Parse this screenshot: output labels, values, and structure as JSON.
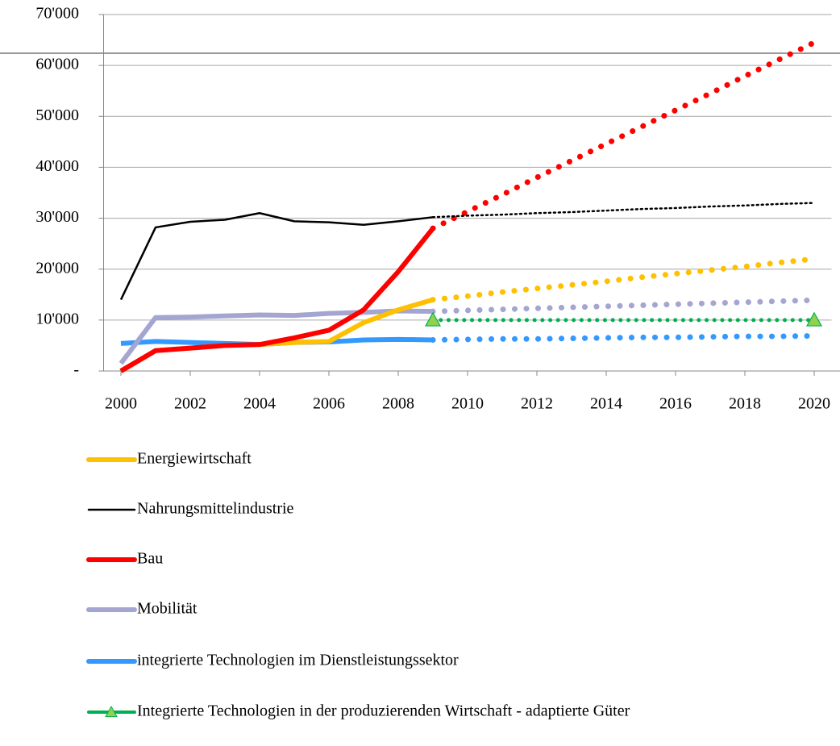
{
  "chart_data": {
    "type": "line",
    "x": [
      2000,
      2001,
      2002,
      2003,
      2004,
      2005,
      2006,
      2007,
      2008,
      2009,
      2010,
      2011,
      2012,
      2013,
      2014,
      2015,
      2016,
      2017,
      2018,
      2019,
      2020
    ],
    "xlim": [
      1999.5,
      2020.5
    ],
    "xticks": [
      2000,
      2002,
      2004,
      2006,
      2008,
      2010,
      2012,
      2014,
      2016,
      2018,
      2020
    ],
    "ylim": [
      0,
      70000
    ],
    "yticks": [
      {
        "value": 0,
        "label": "-"
      },
      {
        "value": 10000,
        "label": "10'000"
      },
      {
        "value": 20000,
        "label": "20'000"
      },
      {
        "value": 30000,
        "label": "30'000"
      },
      {
        "value": 40000,
        "label": "40'000"
      },
      {
        "value": 50000,
        "label": "50'000"
      },
      {
        "value": 60000,
        "label": "60'000"
      },
      {
        "value": 70000,
        "label": "70'000"
      }
    ],
    "grid": true,
    "legend": "bottom",
    "series": [
      {
        "name": "Energiewirtschaft",
        "color": "#ffc000",
        "line_width": 6,
        "values": [
          0,
          4000,
          4500,
          5000,
          5200,
          5600,
          5800,
          9500,
          12000,
          14000,
          null,
          null,
          null,
          null,
          null,
          null,
          null,
          null,
          null,
          null,
          null
        ],
        "forecast": [
          null,
          null,
          null,
          null,
          null,
          null,
          null,
          null,
          null,
          14000,
          14700,
          15500,
          16200,
          16900,
          17600,
          18400,
          19100,
          19800,
          20500,
          21300,
          22000
        ]
      },
      {
        "name": "Nahrungsmittelindustrie",
        "color": "#000000",
        "line_width": 2.5,
        "values": [
          14000,
          28200,
          29300,
          29700,
          31000,
          29400,
          29200,
          28700,
          29400,
          30200,
          null,
          null,
          null,
          null,
          null,
          null,
          null,
          null,
          null,
          null,
          null
        ],
        "forecast": [
          null,
          null,
          null,
          null,
          null,
          null,
          null,
          null,
          null,
          30200,
          30500,
          30700,
          31000,
          31200,
          31500,
          31800,
          32000,
          32300,
          32500,
          32800,
          33000
        ]
      },
      {
        "name": "Bau",
        "color": "#ff0000",
        "line_width": 6,
        "values": [
          0,
          4000,
          4500,
          5000,
          5200,
          6500,
          8000,
          12000,
          19500,
          28000,
          null,
          null,
          null,
          null,
          null,
          null,
          null,
          null,
          null,
          null,
          null
        ],
        "forecast": [
          null,
          null,
          null,
          null,
          null,
          null,
          null,
          null,
          null,
          28000,
          31300,
          34600,
          38000,
          41300,
          44600,
          47900,
          51200,
          54500,
          57900,
          61200,
          64500
        ]
      },
      {
        "name": "Mobilität",
        "color": "#a5a5d2",
        "line_width": 6,
        "values": [
          1500,
          10500,
          10600,
          10800,
          11000,
          10900,
          11300,
          11500,
          11800,
          11700,
          null,
          null,
          null,
          null,
          null,
          null,
          null,
          null,
          null,
          null,
          null
        ],
        "forecast": [
          null,
          null,
          null,
          null,
          null,
          null,
          null,
          null,
          null,
          11700,
          11900,
          12100,
          12300,
          12500,
          12700,
          12900,
          13100,
          13300,
          13500,
          13700,
          13900
        ]
      },
      {
        "name": "integrierte Technologien im Dienstleistungssektor",
        "color": "#3399ff",
        "line_width": 6,
        "values": [
          5400,
          5800,
          5600,
          5400,
          5200,
          5600,
          5700,
          6100,
          6200,
          6100,
          null,
          null,
          null,
          null,
          null,
          null,
          null,
          null,
          null,
          null,
          null
        ],
        "forecast": [
          null,
          null,
          null,
          null,
          null,
          null,
          null,
          null,
          null,
          6100,
          6200,
          6300,
          6300,
          6400,
          6500,
          6600,
          6600,
          6700,
          6800,
          6800,
          6900
        ]
      },
      {
        "name": "Integrierte Technologien in der produzierenden Wirtschaft - adaptierte Güter",
        "color": "#00b050",
        "line_width": 4,
        "marker": "triangle",
        "marker_color": "#92d050",
        "values": [
          null,
          null,
          null,
          null,
          null,
          null,
          null,
          null,
          null,
          10000,
          null,
          null,
          null,
          null,
          null,
          null,
          null,
          null,
          null,
          null,
          10000
        ],
        "forecast": [
          null,
          null,
          null,
          null,
          null,
          null,
          null,
          null,
          null,
          10000,
          10000,
          10000,
          10000,
          10000,
          10000,
          10000,
          10000,
          10000,
          10000,
          10000,
          10000
        ]
      }
    ]
  }
}
